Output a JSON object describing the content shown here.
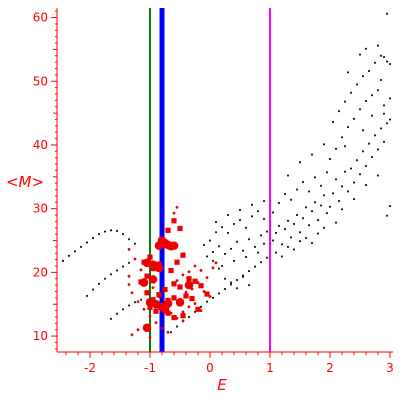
{
  "chart_data": {
    "type": "scatter",
    "title": "",
    "xlabel": "E",
    "ylabel": "<M>",
    "xlim": [
      -2.55,
      3.05
    ],
    "ylim": [
      7.5,
      61.5
    ],
    "xticks": [
      -2,
      -1,
      0,
      1,
      2,
      3
    ],
    "yticks": [
      10,
      20,
      30,
      40,
      50,
      60
    ],
    "grid": false,
    "legend": "none",
    "colors": {
      "axis": "#ff0000",
      "black_points": "#000000",
      "red_points": "#ee0000",
      "line_green": "#008000",
      "line_blue": "#0000ff",
      "line_magenta": "#ff00ff"
    },
    "vertical_lines": [
      {
        "x": -1.0,
        "color": "#008000",
        "width": "thin"
      },
      {
        "x": -0.8,
        "color": "#0000ff",
        "width": "thick"
      },
      {
        "x": 1.0,
        "color": "#ff00ff",
        "width": "thin"
      }
    ],
    "series": [
      {
        "marker": "black-dot",
        "points": [
          [
            -2.45,
            21.8
          ],
          [
            -2.35,
            22.6
          ],
          [
            -2.25,
            23.3
          ],
          [
            -2.15,
            24.0
          ],
          [
            -2.05,
            24.7
          ],
          [
            -1.95,
            25.4
          ],
          [
            -1.85,
            26.0
          ],
          [
            -1.75,
            26.4
          ],
          [
            -1.65,
            26.6
          ],
          [
            -1.55,
            26.5
          ],
          [
            -1.45,
            26.0
          ],
          [
            -1.35,
            25.2
          ],
          [
            -1.25,
            24.5
          ],
          [
            -2.05,
            16.3
          ],
          [
            -1.95,
            17.3
          ],
          [
            -1.85,
            18.2
          ],
          [
            -1.75,
            19.0
          ],
          [
            -1.65,
            19.7
          ],
          [
            -1.55,
            20.3
          ],
          [
            -1.45,
            20.9
          ],
          [
            -1.35,
            21.5
          ],
          [
            -1.65,
            12.7
          ],
          [
            -1.55,
            13.5
          ],
          [
            -1.45,
            14.2
          ],
          [
            -1.35,
            14.8
          ],
          [
            -1.25,
            15.3
          ],
          [
            -1.15,
            15.7
          ],
          [
            -0.65,
            10.6
          ],
          [
            -0.55,
            11.5
          ],
          [
            -0.45,
            12.3
          ],
          [
            -0.35,
            13.0
          ],
          [
            -0.25,
            13.8
          ],
          [
            -0.15,
            14.6
          ],
          [
            -0.05,
            15.4
          ],
          [
            0.05,
            16.0
          ],
          [
            0.15,
            16.7
          ],
          [
            0.25,
            17.4
          ],
          [
            0.35,
            18.1
          ],
          [
            0.45,
            18.8
          ],
          [
            0.55,
            19.5
          ],
          [
            0.65,
            20.2
          ],
          [
            0.75,
            20.9
          ],
          [
            0.85,
            21.6
          ],
          [
            0.95,
            22.3
          ],
          [
            -0.05,
            22.5
          ],
          [
            0.05,
            21.8
          ],
          [
            0.15,
            20.6
          ],
          [
            0.25,
            19.0
          ],
          [
            0.35,
            18.4
          ],
          [
            0.45,
            17.5
          ],
          [
            0.55,
            19.3
          ],
          [
            0.65,
            18.0
          ],
          [
            -0.1,
            24.3
          ],
          [
            0.0,
            25.0
          ],
          [
            0.1,
            26.3
          ],
          [
            0.2,
            27.1
          ],
          [
            0.3,
            26.2
          ],
          [
            0.4,
            27.6
          ],
          [
            0.5,
            28.2
          ],
          [
            0.6,
            27.0
          ],
          [
            0.7,
            28.8
          ],
          [
            0.8,
            29.6
          ],
          [
            0.9,
            28.4
          ],
          [
            0.05,
            23.2
          ],
          [
            0.15,
            24.1
          ],
          [
            0.25,
            22.9
          ],
          [
            0.35,
            23.7
          ],
          [
            0.45,
            24.8
          ],
          [
            0.55,
            23.4
          ],
          [
            0.65,
            25.2
          ],
          [
            0.75,
            24.0
          ],
          [
            0.85,
            25.8
          ],
          [
            0.95,
            26.4
          ],
          [
            0.1,
            27.9
          ],
          [
            0.3,
            29.0
          ],
          [
            0.5,
            29.8
          ],
          [
            0.7,
            30.6
          ],
          [
            0.9,
            31.2
          ],
          [
            0.2,
            21.0
          ],
          [
            0.4,
            21.8
          ],
          [
            0.6,
            22.4
          ],
          [
            0.8,
            23.1
          ],
          [
            0.9,
            24.5
          ],
          [
            1.05,
            25.0
          ],
          [
            1.1,
            26.2
          ],
          [
            1.15,
            27.3
          ],
          [
            1.2,
            24.4
          ],
          [
            1.25,
            26.8
          ],
          [
            1.3,
            28.1
          ],
          [
            1.35,
            25.5
          ],
          [
            1.4,
            27.6
          ],
          [
            1.45,
            29.0
          ],
          [
            1.5,
            26.3
          ],
          [
            1.55,
            28.5
          ],
          [
            1.6,
            30.2
          ],
          [
            1.65,
            27.4
          ],
          [
            1.7,
            29.6
          ],
          [
            1.75,
            31.0
          ],
          [
            1.8,
            28.2
          ],
          [
            1.85,
            30.5
          ],
          [
            1.9,
            32.1
          ],
          [
            1.95,
            29.3
          ],
          [
            1.05,
            29.4
          ],
          [
            1.15,
            30.9
          ],
          [
            1.25,
            32.3
          ],
          [
            1.35,
            31.4
          ],
          [
            1.45,
            33.0
          ],
          [
            1.55,
            34.2
          ],
          [
            1.65,
            32.7
          ],
          [
            1.75,
            34.9
          ],
          [
            1.85,
            33.6
          ],
          [
            1.95,
            35.7
          ],
          [
            1.1,
            23.1
          ],
          [
            1.2,
            22.5
          ],
          [
            1.3,
            24.0
          ],
          [
            1.4,
            23.6
          ],
          [
            1.5,
            24.9
          ],
          [
            1.6,
            25.4
          ],
          [
            1.7,
            24.6
          ],
          [
            1.8,
            26.1
          ],
          [
            1.9,
            27.0
          ],
          [
            1.3,
            35.2
          ],
          [
            1.5,
            37.3
          ],
          [
            1.7,
            38.5
          ],
          [
            1.9,
            40.1
          ],
          [
            2.0,
            30.3
          ],
          [
            2.05,
            32.4
          ],
          [
            2.1,
            34.6
          ],
          [
            2.15,
            31.2
          ],
          [
            2.2,
            33.5
          ],
          [
            2.25,
            35.8
          ],
          [
            2.3,
            32.7
          ],
          [
            2.35,
            36.3
          ],
          [
            2.4,
            34.1
          ],
          [
            2.45,
            37.6
          ],
          [
            2.5,
            35.4
          ],
          [
            2.55,
            39.0
          ],
          [
            2.6,
            36.7
          ],
          [
            2.65,
            40.2
          ],
          [
            2.7,
            38.1
          ],
          [
            2.75,
            41.5
          ],
          [
            2.8,
            39.3
          ],
          [
            2.85,
            42.6
          ],
          [
            2.9,
            40.5
          ],
          [
            2.95,
            43.4
          ],
          [
            2.0,
            37.8
          ],
          [
            2.1,
            39.4
          ],
          [
            2.2,
            41.2
          ],
          [
            2.3,
            42.8
          ],
          [
            2.4,
            44.1
          ],
          [
            2.5,
            45.6
          ],
          [
            2.6,
            46.9
          ],
          [
            2.7,
            47.8
          ],
          [
            2.8,
            48.6
          ],
          [
            2.9,
            46.2
          ],
          [
            3.0,
            47.3
          ],
          [
            2.05,
            43.6
          ],
          [
            2.15,
            45.3
          ],
          [
            2.25,
            46.8
          ],
          [
            2.35,
            48.2
          ],
          [
            2.45,
            49.5
          ],
          [
            2.55,
            50.8
          ],
          [
            2.65,
            51.6
          ],
          [
            2.75,
            52.9
          ],
          [
            2.85,
            54.0
          ],
          [
            2.95,
            53.1
          ],
          [
            2.3,
            51.4
          ],
          [
            2.5,
            54.2
          ],
          [
            2.6,
            55.1
          ],
          [
            2.8,
            55.6
          ],
          [
            2.9,
            53.8
          ],
          [
            3.0,
            52.7
          ],
          [
            2.1,
            27.8
          ],
          [
            2.2,
            29.9
          ],
          [
            2.4,
            31.5
          ],
          [
            2.6,
            33.7
          ],
          [
            2.8,
            35.2
          ],
          [
            3.0,
            30.4
          ],
          [
            2.95,
            28.9
          ],
          [
            2.7,
            44.6
          ],
          [
            2.9,
            44.9
          ],
          [
            3.0,
            44.0
          ],
          [
            2.85,
            50.2
          ],
          [
            2.55,
            42.3
          ],
          [
            2.25,
            39.8
          ],
          [
            2.95,
            60.6
          ]
        ]
      },
      {
        "marker": "red-dot",
        "points": [
          [
            -1.35,
            23.6
          ],
          [
            -1.25,
            22.1
          ],
          [
            -1.15,
            20.4
          ],
          [
            -1.05,
            19.4
          ],
          [
            -0.95,
            17.6
          ],
          [
            -0.85,
            16.2
          ],
          [
            -0.75,
            14.9
          ],
          [
            -0.65,
            13.6
          ],
          [
            -0.55,
            12.8
          ],
          [
            -0.45,
            12.4
          ],
          [
            -1.35,
            18.1
          ],
          [
            -1.3,
            16.8
          ],
          [
            -1.2,
            15.4
          ],
          [
            -1.1,
            14.2
          ],
          [
            -1.0,
            13.1
          ],
          [
            -0.9,
            12.1
          ],
          [
            -0.8,
            11.2
          ],
          [
            -0.7,
            10.6
          ],
          [
            -1.3,
            10.2
          ],
          [
            -1.2,
            11.0
          ],
          [
            -0.55,
            18.7
          ],
          [
            -0.45,
            19.6
          ],
          [
            -0.35,
            20.1
          ],
          [
            -0.25,
            21.0
          ],
          [
            -0.15,
            20.3
          ],
          [
            -0.05,
            19.2
          ],
          [
            0.05,
            20.7
          ],
          [
            0.1,
            21.5
          ],
          [
            -0.5,
            15.8
          ],
          [
            -0.4,
            16.9
          ],
          [
            -0.3,
            17.4
          ],
          [
            -0.2,
            18.4
          ],
          [
            -0.1,
            17.0
          ],
          [
            0.0,
            16.2
          ],
          [
            -0.45,
            13.8
          ],
          [
            -0.35,
            14.6
          ],
          [
            -0.25,
            15.1
          ],
          [
            -0.15,
            14.0
          ],
          [
            -0.6,
            29.3
          ],
          [
            -0.55,
            30.2
          ],
          [
            -1.35,
            19.4
          ],
          [
            -1.0,
            9.8
          ]
        ]
      },
      {
        "marker": "red-square",
        "points": [
          [
            -1.15,
            18.5
          ],
          [
            -1.05,
            19.4
          ],
          [
            -0.95,
            20.6
          ],
          [
            -0.85,
            21.3
          ],
          [
            -1.1,
            21.6
          ],
          [
            -1.0,
            22.4
          ],
          [
            -1.05,
            16.8
          ],
          [
            -0.95,
            15.7
          ],
          [
            -0.85,
            16.5
          ],
          [
            -0.75,
            17.3
          ],
          [
            -0.6,
            18.2
          ],
          [
            -0.5,
            17.7
          ],
          [
            -0.7,
            15.6
          ],
          [
            -0.6,
            16.0
          ],
          [
            -0.5,
            15.2
          ],
          [
            -0.4,
            16.3
          ],
          [
            -0.3,
            15.9
          ],
          [
            -0.2,
            14.2
          ],
          [
            -1.0,
            14.5
          ],
          [
            -0.9,
            13.9
          ],
          [
            -0.8,
            14.8
          ],
          [
            -0.7,
            13.6
          ],
          [
            -0.6,
            12.9
          ],
          [
            -0.45,
            13.2
          ],
          [
            -0.65,
            20.3
          ],
          [
            -0.55,
            21.6
          ],
          [
            -0.45,
            22.7
          ],
          [
            -0.35,
            19.0
          ],
          [
            -0.25,
            18.6
          ],
          [
            -0.15,
            17.9
          ],
          [
            -0.05,
            16.6
          ],
          [
            -0.7,
            26.6
          ],
          [
            -0.6,
            28.1
          ],
          [
            -0.5,
            26.9
          ]
        ]
      },
      {
        "marker": "red-large",
        "points": [
          [
            -0.8,
            25.0
          ],
          [
            -0.75,
            24.6
          ],
          [
            -0.7,
            24.3
          ],
          [
            -0.65,
            24.1
          ],
          [
            -0.6,
            24.2
          ],
          [
            -0.85,
            24.2
          ],
          [
            -1.05,
            21.5
          ],
          [
            -0.95,
            21.2
          ],
          [
            -0.85,
            20.7
          ],
          [
            -1.0,
            15.3
          ],
          [
            -0.9,
            15.0
          ],
          [
            -0.8,
            14.6
          ],
          [
            -0.75,
            14.2
          ],
          [
            -0.7,
            15.1
          ],
          [
            -1.1,
            18.4
          ],
          [
            -0.95,
            18.9
          ],
          [
            -1.05,
            11.3
          ],
          [
            -0.5,
            15.3
          ],
          [
            -0.35,
            18.0
          ]
        ]
      }
    ]
  }
}
